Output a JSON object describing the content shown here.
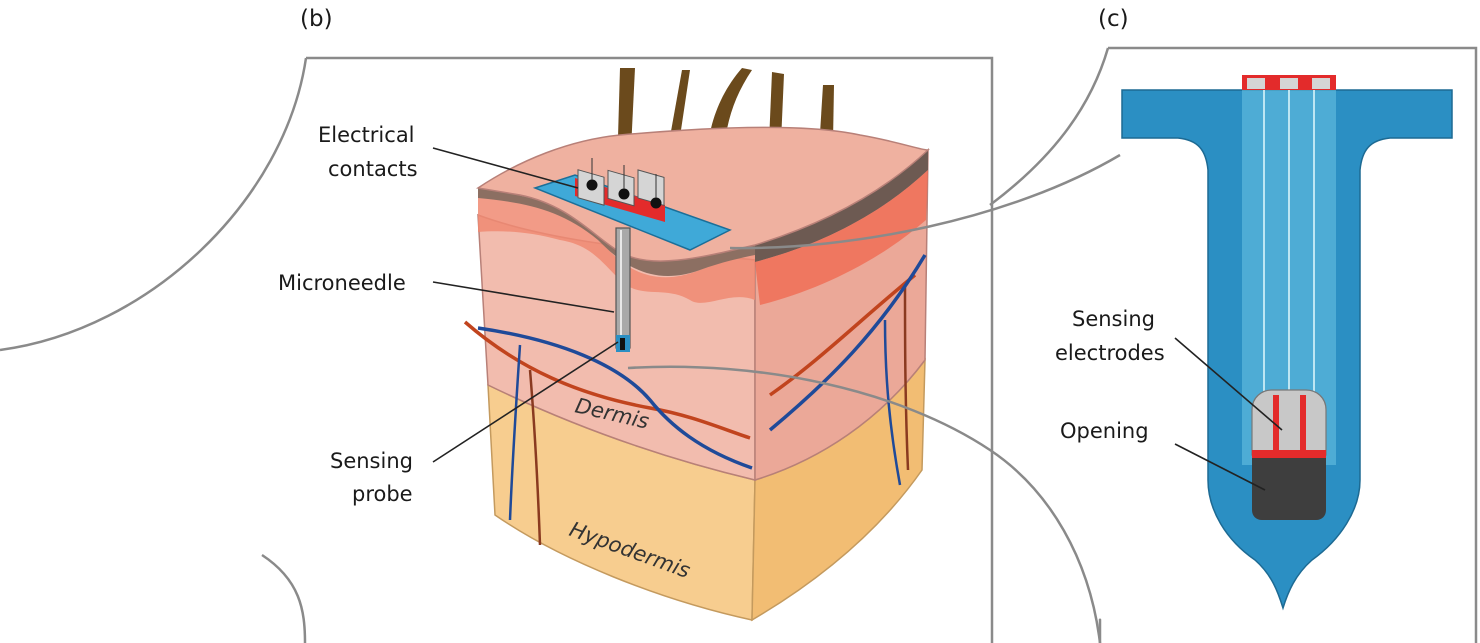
{
  "panels": {
    "b": {
      "tag": "(b)",
      "labels": {
        "electrical_contacts_line1": "Electrical",
        "electrical_contacts_line2": "contacts",
        "microneedle": "Microneedle",
        "sensing_probe_line1": "Sensing",
        "sensing_probe_line2": "probe",
        "dermis": "Dermis",
        "hypodermis": "Hypodermis"
      }
    },
    "c": {
      "tag": "(c)",
      "labels": {
        "sensing_electrodes_line1": "Sensing",
        "sensing_electrodes_line2": "electrodes",
        "opening": "Opening"
      }
    }
  },
  "colors": {
    "hair": "#6b4a1c",
    "epidermis_top": "#efb1a0",
    "epidermis_dark": "#8c6f62",
    "dermis": "#eba898",
    "dermis_light": "#f2bcae",
    "hypodermis": "#f7cd8f",
    "artery": "#c1441e",
    "vein": "#1f4a99",
    "device_blue": "#2b8fc3",
    "contact_red": "#e32b2b",
    "contact_grey": "#d5d5d5",
    "opening_dark": "#3e3e3e"
  }
}
